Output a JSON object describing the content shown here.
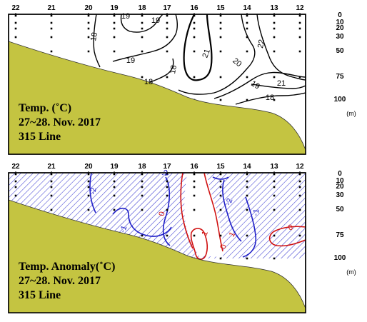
{
  "chart_data": [
    {
      "type": "contour",
      "title_lines": [
        "Temp. (˚C)",
        "27~28. Nov. 2017",
        "315 Line"
      ],
      "stations": [
        "22",
        "21",
        "20",
        "19",
        "18",
        "17",
        "16",
        "15",
        "14",
        "13",
        "12"
      ],
      "depth_ticks": [
        "0",
        "10",
        "20",
        "30",
        "50",
        "75",
        "100"
      ],
      "depth_unit": "(m)",
      "contour_labels": [
        "18",
        "19",
        "19",
        "18",
        "19",
        "18",
        "21",
        "20",
        "22",
        "19",
        "21",
        "18"
      ],
      "colors": {
        "terrain": "#c4c441",
        "contour": "#000000"
      }
    },
    {
      "type": "contour",
      "title_lines": [
        "Temp. Anomaly(˚C)",
        "27~28. Nov. 2017",
        "315 Line"
      ],
      "stations": [
        "22",
        "21",
        "20",
        "19",
        "18",
        "17",
        "16",
        "15",
        "14",
        "13",
        "12"
      ],
      "depth_ticks": [
        "0",
        "10",
        "20",
        "30",
        "50",
        "75",
        "100"
      ],
      "depth_unit": "(m)",
      "contour_labels": [
        "-2",
        "-2",
        "-1",
        "0",
        "1",
        "-2",
        "-1",
        "1",
        "0",
        "0"
      ],
      "colors": {
        "terrain": "#c4c441",
        "negative": "#2020c8",
        "positive": "#d01010",
        "hatch": "#3a3ad0"
      }
    }
  ]
}
